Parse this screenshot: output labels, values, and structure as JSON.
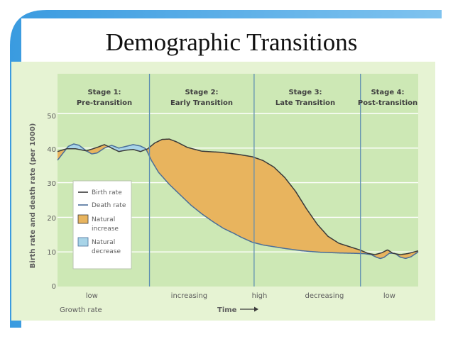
{
  "slide": {
    "title": "Demographic Transitions"
  },
  "colors": {
    "background_blue": "#3a9be0",
    "background_light": "#7fc3ef",
    "plot_green": "#cde8b5",
    "plot_border": "#e6f3d3",
    "birth_rate_line": "#3a3a3a",
    "death_rate_line": "#4a6e99",
    "natural_increase": "#e8b45e",
    "natural_decrease": "#a8d4e8",
    "stage_divider": "#5f8fb1",
    "gridline": "#ffffff"
  },
  "chart_data": {
    "type": "area",
    "ylabel": "Birth rate and death rate (per 1000)",
    "xlabel": "Time",
    "xlabel_arrow": "→",
    "ylim": [
      0,
      50
    ],
    "y_ticks": [
      "0",
      "10",
      "20",
      "30",
      "40",
      "50"
    ],
    "grid": "horizontal",
    "legend_position": "left, lower-middle",
    "stages": [
      {
        "line1": "Stage 1:",
        "line2": "Pre-transition"
      },
      {
        "line1": "Stage 2:",
        "line2": "Early Transition"
      },
      {
        "line1": "Stage 3:",
        "line2": "Late Transition"
      },
      {
        "line1": "Stage 4:",
        "line2": "Post-transition"
      }
    ],
    "x_range": [
      0,
      100
    ],
    "stage_boundaries": [
      25.5,
      54.5,
      84
    ],
    "growth_rate_title": "Growth rate",
    "growth_rate_labels": [
      {
        "text": "low",
        "x": 9.5
      },
      {
        "text": "increasing",
        "x": 36.5
      },
      {
        "text": "high",
        "x": 56
      },
      {
        "text": "decreasing",
        "x": 74
      },
      {
        "text": "low",
        "x": 92
      }
    ],
    "series": [
      {
        "name": "Birth rate",
        "points": [
          [
            0,
            39
          ],
          [
            2.5,
            39.8
          ],
          [
            5,
            39.8
          ],
          [
            8,
            39.2
          ],
          [
            11,
            40.2
          ],
          [
            13,
            41
          ],
          [
            15,
            40
          ],
          [
            17,
            39
          ],
          [
            19,
            39.4
          ],
          [
            21,
            39.6
          ],
          [
            23,
            39
          ],
          [
            25,
            39.8
          ],
          [
            27,
            41.5
          ],
          [
            29,
            42.5
          ],
          [
            31,
            42.6
          ],
          [
            33,
            41.8
          ],
          [
            36,
            40.2
          ],
          [
            40,
            39.1
          ],
          [
            45,
            38.8
          ],
          [
            50,
            38.2
          ],
          [
            54,
            37.5
          ],
          [
            57,
            36.4
          ],
          [
            60,
            34.5
          ],
          [
            63,
            31.5
          ],
          [
            66,
            27.5
          ],
          [
            69,
            22.5
          ],
          [
            72,
            18
          ],
          [
            75,
            14.5
          ],
          [
            78,
            12.5
          ],
          [
            81,
            11.5
          ],
          [
            84,
            10.5
          ],
          [
            86,
            9.6
          ],
          [
            88,
            9.2
          ],
          [
            90,
            9.8
          ],
          [
            91.5,
            10.6
          ],
          [
            93,
            9.6
          ],
          [
            95,
            9.2
          ],
          [
            97,
            9.5
          ],
          [
            100,
            10.3
          ]
        ]
      },
      {
        "name": "Death rate",
        "points": [
          [
            0,
            36.5
          ],
          [
            1.5,
            38.5
          ],
          [
            3,
            40.5
          ],
          [
            4.5,
            41.2
          ],
          [
            6,
            40.8
          ],
          [
            8,
            39.2
          ],
          [
            9.5,
            38.3
          ],
          [
            11,
            38.6
          ],
          [
            13,
            40
          ],
          [
            15,
            40.8
          ],
          [
            17,
            40
          ],
          [
            19,
            40.5
          ],
          [
            21,
            41
          ],
          [
            23,
            40.6
          ],
          [
            24.5,
            39.8
          ],
          [
            26,
            36.5
          ],
          [
            28,
            33
          ],
          [
            31,
            29.5
          ],
          [
            34,
            26.5
          ],
          [
            37,
            23.5
          ],
          [
            40,
            21
          ],
          [
            43,
            18.8
          ],
          [
            46,
            16.8
          ],
          [
            49,
            15.3
          ],
          [
            51,
            14.2
          ],
          [
            54,
            12.8
          ],
          [
            57,
            12
          ],
          [
            60,
            11.5
          ],
          [
            63,
            11
          ],
          [
            68,
            10.3
          ],
          [
            73,
            9.9
          ],
          [
            78,
            9.7
          ],
          [
            82,
            9.6
          ],
          [
            85,
            9.5
          ],
          [
            87,
            9.2
          ],
          [
            88.5,
            8.4
          ],
          [
            89.5,
            8.1
          ],
          [
            90.5,
            8.4
          ],
          [
            92,
            9.6
          ],
          [
            93.5,
            9.6
          ],
          [
            95,
            8.5
          ],
          [
            96.5,
            8.1
          ],
          [
            98,
            8.6
          ],
          [
            100,
            10
          ]
        ]
      }
    ],
    "legend": [
      {
        "label": "Birth rate",
        "kind": "line",
        "color_key": "birth_rate_line"
      },
      {
        "label": "Death rate",
        "kind": "line",
        "color_key": "death_rate_line"
      },
      {
        "label_line1": "Natural",
        "label_line2": "increase",
        "kind": "swatch",
        "color_key": "natural_increase"
      },
      {
        "label_line1": "Natural",
        "label_line2": "decrease",
        "kind": "swatch",
        "color_key": "natural_decrease"
      }
    ]
  }
}
